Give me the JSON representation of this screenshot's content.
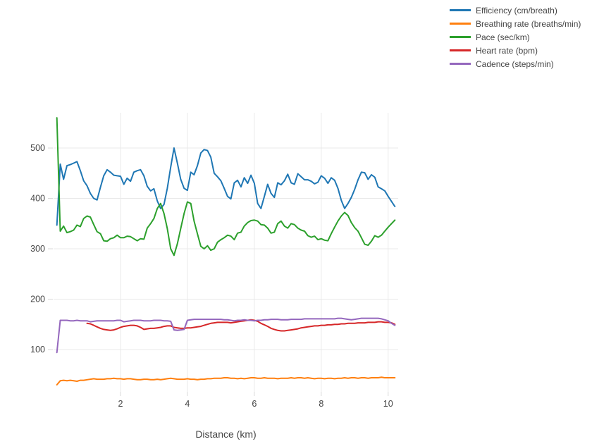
{
  "chart_data": {
    "type": "line",
    "title": "",
    "xlabel": "Distance (km)",
    "ylabel": "",
    "x_step": 0.1,
    "xlim": [
      0,
      10.3
    ],
    "ylim": [
      16,
      570
    ],
    "xticks": [
      2,
      4,
      6,
      8,
      10
    ],
    "yticks": [
      100,
      200,
      300,
      400,
      500
    ],
    "grid": true,
    "legend_position": "top-right",
    "colors": {
      "text": "#444444",
      "grid": "#e9e9e9",
      "tick": "#d9d9d9",
      "background": "#ffffff"
    },
    "series": [
      {
        "name": "Efficiency (cm/breath)",
        "color": "#1f77b4",
        "x_first": 0.1,
        "values": [
          347,
          468,
          438,
          465,
          467,
          470,
          473,
          455,
          435,
          425,
          410,
          400,
          397,
          422,
          445,
          457,
          452,
          446,
          445,
          444,
          428,
          440,
          434,
          452,
          455,
          457,
          445,
          424,
          415,
          419,
          395,
          380,
          388,
          420,
          462,
          500,
          470,
          438,
          420,
          416,
          452,
          447,
          465,
          490,
          497,
          495,
          482,
          450,
          443,
          435,
          420,
          404,
          399,
          431,
          436,
          423,
          441,
          430,
          446,
          430,
          390,
          380,
          404,
          428,
          410,
          402,
          431,
          427,
          435,
          448,
          431,
          428,
          449,
          443,
          437,
          437,
          434,
          429,
          432,
          445,
          440,
          430,
          441,
          436,
          420,
          396,
          380,
          390,
          402,
          418,
          437,
          452,
          451,
          438,
          447,
          442,
          423,
          419,
          415,
          404,
          394,
          384
        ]
      },
      {
        "name": "Breathing rate (breaths/min)",
        "color": "#ff7f0e",
        "x_first": 0.1,
        "values": [
          30,
          38,
          39,
          38,
          39,
          38,
          37,
          39,
          39,
          40,
          41,
          42,
          41,
          41,
          41,
          42,
          42,
          43,
          42,
          42,
          41,
          42,
          42,
          41,
          40,
          40,
          41,
          41,
          40,
          40,
          41,
          40,
          41,
          42,
          43,
          42,
          41,
          41,
          41,
          42,
          41,
          41,
          40,
          41,
          41,
          42,
          42,
          43,
          43,
          43,
          44,
          44,
          43,
          43,
          42,
          43,
          42,
          43,
          44,
          44,
          43,
          43,
          44,
          43,
          43,
          43,
          42,
          43,
          43,
          43,
          44,
          43,
          44,
          44,
          43,
          44,
          43,
          42,
          43,
          43,
          42,
          43,
          43,
          42,
          43,
          43,
          44,
          43,
          44,
          44,
          43,
          44,
          44,
          43,
          44,
          44,
          44,
          45,
          44,
          44,
          44,
          44
        ]
      },
      {
        "name": "Pace (sec/km)",
        "color": "#2ca02c",
        "x_first": 0.1,
        "values": [
          560,
          335,
          345,
          332,
          334,
          337,
          347,
          344,
          360,
          365,
          363,
          348,
          334,
          330,
          316,
          315,
          320,
          322,
          327,
          322,
          322,
          325,
          324,
          320,
          316,
          320,
          319,
          341,
          350,
          360,
          380,
          390,
          370,
          340,
          300,
          287,
          310,
          340,
          370,
          393,
          390,
          355,
          330,
          305,
          300,
          306,
          297,
          300,
          313,
          318,
          322,
          327,
          325,
          318,
          331,
          333,
          345,
          352,
          356,
          357,
          355,
          348,
          347,
          341,
          331,
          333,
          350,
          355,
          345,
          341,
          350,
          348,
          341,
          337,
          335,
          326,
          323,
          325,
          318,
          320,
          317,
          316,
          330,
          343,
          355,
          365,
          372,
          366,
          352,
          342,
          335,
          322,
          309,
          307,
          315,
          326,
          323,
          327,
          335,
          343,
          350,
          357
        ]
      },
      {
        "name": "Heart rate (bpm)",
        "color": "#d62728",
        "x_first": 1.0,
        "values": [
          152,
          151,
          148,
          145,
          142,
          140,
          139,
          138,
          139,
          141,
          144,
          146,
          147,
          148,
          148,
          147,
          144,
          140,
          141,
          142,
          142,
          143,
          144,
          146,
          147,
          147,
          144,
          143,
          142,
          142,
          143,
          143,
          144,
          145,
          146,
          148,
          150,
          152,
          153,
          154,
          154,
          154,
          154,
          153,
          154,
          155,
          156,
          157,
          158,
          159,
          158,
          156,
          152,
          149,
          146,
          142,
          140,
          138,
          137,
          137,
          138,
          139,
          140,
          141,
          143,
          144,
          145,
          146,
          147,
          147,
          148,
          148,
          149,
          149,
          150,
          150,
          151,
          151,
          152,
          152,
          152,
          153,
          153,
          153,
          154,
          154,
          154,
          155,
          155,
          154,
          154,
          153,
          150
        ]
      },
      {
        "name": "Cadence (steps/min)",
        "color": "#9467bd",
        "x_first": 0.1,
        "values": [
          94,
          158,
          158,
          158,
          157,
          157,
          158,
          157,
          157,
          157,
          155,
          156,
          157,
          157,
          157,
          157,
          157,
          157,
          158,
          158,
          155,
          156,
          157,
          158,
          158,
          158,
          157,
          157,
          157,
          158,
          158,
          158,
          157,
          157,
          156,
          139,
          138,
          139,
          140,
          158,
          159,
          160,
          160,
          160,
          160,
          160,
          160,
          160,
          160,
          160,
          159,
          159,
          158,
          157,
          158,
          158,
          159,
          158,
          158,
          157,
          158,
          158,
          159,
          159,
          160,
          160,
          160,
          159,
          159,
          159,
          160,
          160,
          160,
          160,
          161,
          161,
          161,
          161,
          161,
          161,
          161,
          161,
          161,
          161,
          162,
          162,
          161,
          160,
          159,
          160,
          161,
          162,
          162,
          162,
          162,
          162,
          162,
          161,
          159,
          157,
          152,
          148
        ]
      }
    ]
  }
}
